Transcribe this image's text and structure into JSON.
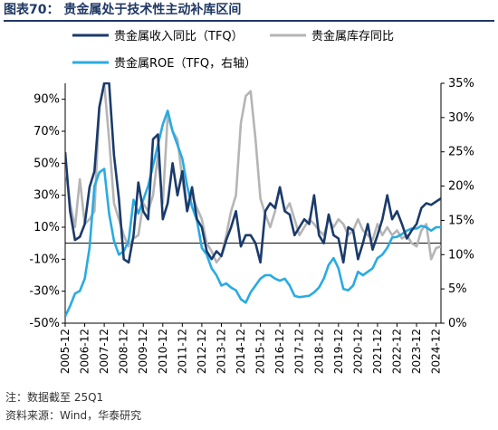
{
  "title": "图表70： 贵金属处于技术性主动补库区间",
  "notes": [
    "注：数据截至 25Q1",
    "资料来源：Wind，华泰研究"
  ],
  "chart_data": {
    "type": "line",
    "x_tick_labels": [
      "2005-12",
      "2006-12",
      "2007-12",
      "2008-12",
      "2009-12",
      "2010-12",
      "2011-12",
      "2012-12",
      "2013-12",
      "2014-12",
      "2015-12",
      "2016-12",
      "2017-12",
      "2018-12",
      "2019-12",
      "2020-12",
      "2021-12",
      "2022-12",
      "2023-12",
      "2024-12"
    ],
    "x_start_year": 2005.75,
    "x_end_year": 2025.0,
    "left_axis": {
      "ticks": [
        "-50%",
        "-30%",
        "-10%",
        "10%",
        "30%",
        "50%",
        "70%",
        "90%"
      ],
      "ylim": [
        -50,
        100
      ]
    },
    "right_axis": {
      "ticks": [
        "0%",
        "5%",
        "10%",
        "15%",
        "20%",
        "25%",
        "30%",
        "35%"
      ],
      "ylim": [
        0,
        35
      ]
    },
    "legend_position": "top",
    "series": [
      {
        "name": "贵金属收入同比（TFQ）",
        "axis": "left",
        "color": "#1a3a6b",
        "x": [
          2005.75,
          2006.0,
          2006.25,
          2006.5,
          2006.75,
          2007.0,
          2007.25,
          2007.5,
          2007.75,
          2008.0,
          2008.25,
          2008.5,
          2008.75,
          2009.0,
          2009.25,
          2009.5,
          2009.75,
          2010.0,
          2010.25,
          2010.5,
          2010.75,
          2011.0,
          2011.25,
          2011.5,
          2011.75,
          2012.0,
          2012.25,
          2012.5,
          2012.75,
          2013.0,
          2013.25,
          2013.5,
          2013.75,
          2014.0,
          2014.25,
          2014.5,
          2014.75,
          2015.0,
          2015.25,
          2015.5,
          2015.75,
          2016.0,
          2016.25,
          2016.5,
          2016.75,
          2017.0,
          2017.25,
          2017.5,
          2017.75,
          2018.0,
          2018.25,
          2018.5,
          2018.75,
          2019.0,
          2019.25,
          2019.5,
          2019.75,
          2020.0,
          2020.25,
          2020.5,
          2020.75,
          2021.0,
          2021.25,
          2021.5,
          2021.75,
          2022.0,
          2022.25,
          2022.5,
          2022.75,
          2023.0,
          2023.25,
          2023.5,
          2023.75,
          2024.0,
          2024.25,
          2024.5,
          2024.75,
          2025.0
        ],
        "values": [
          57,
          20,
          2,
          4,
          12,
          35,
          45,
          85,
          100,
          100,
          55,
          28,
          -10,
          -12,
          5,
          38,
          20,
          15,
          65,
          68,
          15,
          25,
          50,
          30,
          45,
          20,
          35,
          15,
          10,
          -5,
          -10,
          -5,
          -8,
          2,
          10,
          20,
          -2,
          5,
          5,
          0,
          -12,
          20,
          25,
          22,
          35,
          20,
          18,
          5,
          10,
          15,
          12,
          30,
          5,
          0,
          18,
          5,
          3,
          -12,
          10,
          8,
          -10,
          0,
          12,
          -4,
          5,
          15,
          30,
          15,
          20,
          12,
          3,
          8,
          12,
          22,
          25,
          24,
          26,
          28
        ]
      },
      {
        "name": "贵金属库存同比",
        "axis": "left",
        "color": "#b5b5b5",
        "x": [
          2005.75,
          2006.0,
          2006.25,
          2006.5,
          2006.75,
          2007.0,
          2007.25,
          2007.5,
          2007.75,
          2008.0,
          2008.25,
          2008.5,
          2008.75,
          2009.0,
          2009.25,
          2009.5,
          2009.75,
          2010.0,
          2010.25,
          2010.5,
          2010.75,
          2011.0,
          2011.25,
          2011.5,
          2011.75,
          2012.0,
          2012.25,
          2012.5,
          2012.75,
          2013.0,
          2013.25,
          2013.5,
          2013.75,
          2014.0,
          2014.25,
          2014.5,
          2014.75,
          2015.0,
          2015.25,
          2015.5,
          2015.75,
          2016.0,
          2016.25,
          2016.5,
          2016.75,
          2017.0,
          2017.25,
          2017.5,
          2017.75,
          2018.0,
          2018.25,
          2018.5,
          2018.75,
          2019.0,
          2019.25,
          2019.5,
          2019.75,
          2020.0,
          2020.25,
          2020.5,
          2020.75,
          2021.0,
          2021.25,
          2021.5,
          2021.75,
          2022.0,
          2022.25,
          2022.5,
          2022.75,
          2023.0,
          2023.25,
          2023.5,
          2023.75,
          2024.0,
          2024.25,
          2024.5,
          2024.75,
          2025.0
        ],
        "values": [
          48,
          25,
          10,
          40,
          12,
          15,
          20,
          85,
          100,
          65,
          25,
          15,
          5,
          -2,
          3,
          5,
          25,
          20,
          30,
          55,
          25,
          80,
          70,
          65,
          40,
          20,
          30,
          22,
          15,
          0,
          -5,
          -12,
          -8,
          5,
          20,
          30,
          75,
          92,
          95,
          65,
          28,
          18,
          10,
          20,
          35,
          20,
          25,
          15,
          5,
          10,
          15,
          12,
          8,
          5,
          15,
          10,
          15,
          12,
          5,
          8,
          15,
          8,
          5,
          2,
          12,
          5,
          10,
          5,
          8,
          3,
          5,
          0,
          -2,
          8,
          12,
          -10,
          -3,
          -2
        ]
      },
      {
        "name": "贵金属ROE（TFQ，右轴）",
        "axis": "right",
        "color": "#29abe2",
        "x": [
          2005.75,
          2006.0,
          2006.25,
          2006.5,
          2006.75,
          2007.0,
          2007.25,
          2007.5,
          2007.75,
          2008.0,
          2008.25,
          2008.5,
          2008.75,
          2009.0,
          2009.25,
          2009.5,
          2009.75,
          2010.0,
          2010.25,
          2010.5,
          2010.75,
          2011.0,
          2011.25,
          2011.5,
          2011.75,
          2012.0,
          2012.25,
          2012.5,
          2012.75,
          2013.0,
          2013.25,
          2013.5,
          2013.75,
          2014.0,
          2014.25,
          2014.5,
          2014.75,
          2015.0,
          2015.25,
          2015.5,
          2015.75,
          2016.0,
          2016.25,
          2016.5,
          2016.75,
          2017.0,
          2017.25,
          2017.5,
          2017.75,
          2018.0,
          2018.25,
          2018.5,
          2018.75,
          2019.0,
          2019.25,
          2019.5,
          2019.75,
          2020.0,
          2020.25,
          2020.5,
          2020.75,
          2021.0,
          2021.25,
          2021.5,
          2021.75,
          2022.0,
          2022.25,
          2022.5,
          2022.75,
          2023.0,
          2023.25,
          2023.5,
          2023.75,
          2024.0,
          2024.25,
          2024.5,
          2024.75,
          2025.0
        ],
        "values": [
          1,
          2.5,
          4.3,
          4.7,
          6.5,
          11,
          20,
          22,
          22.5,
          16,
          12,
          10,
          10.5,
          12,
          18,
          16,
          18,
          20,
          23,
          26,
          29,
          31,
          28,
          26,
          24,
          20,
          17,
          15,
          11,
          10,
          8,
          7,
          5.5,
          5.8,
          5.2,
          4.8,
          3.5,
          3,
          4.5,
          5.5,
          6.5,
          7,
          7,
          6.5,
          6.2,
          6.5,
          5.5,
          4,
          3.8,
          3.9,
          4,
          4.5,
          5.2,
          6.5,
          8.5,
          9.5,
          8,
          5,
          4.8,
          5.5,
          7.5,
          7,
          7.5,
          8,
          9.5,
          10,
          11,
          12.5,
          12.6,
          13,
          13.5,
          13.8,
          13.8,
          14.2,
          14,
          13.5,
          14,
          14
        ]
      }
    ]
  }
}
